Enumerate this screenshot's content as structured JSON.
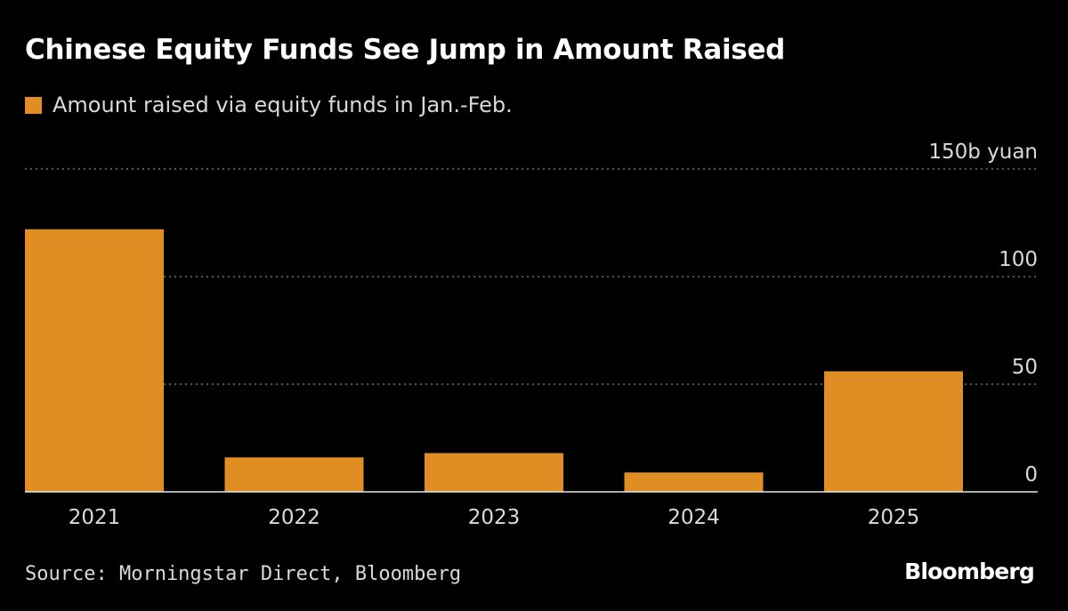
{
  "chart_data": {
    "type": "bar",
    "title": "Chinese Equity Funds See Jump in Amount Raised",
    "categories": [
      "2021",
      "2022",
      "2023",
      "2024",
      "2025"
    ],
    "series": [
      {
        "name": "Amount raised via equity funds in Jan.-Feb.",
        "values": [
          122,
          16,
          18,
          9,
          56
        ]
      }
    ],
    "ylim": [
      0,
      150
    ],
    "yticks": [
      0,
      50,
      100,
      150
    ],
    "ytick_labels": [
      "0",
      "50",
      "100",
      "150b yuan"
    ],
    "grid": true,
    "legend_position": "top-left",
    "bar_color": "#e08d24",
    "source": "Source: Morningstar Direct, Bloomberg",
    "brand": "Bloomberg"
  }
}
